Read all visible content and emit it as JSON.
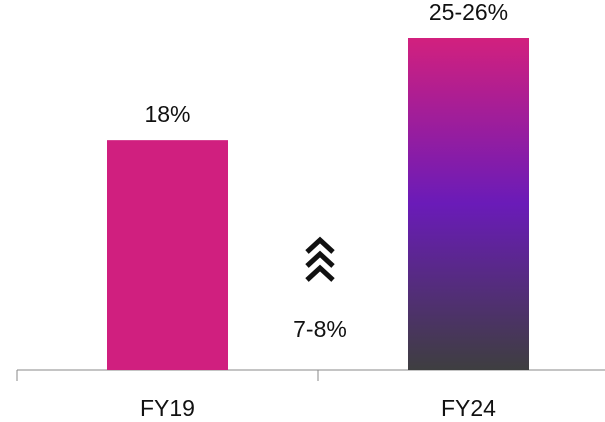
{
  "chart_data": {
    "type": "bar",
    "categories": [
      "FY19",
      "FY24"
    ],
    "values": [
      18,
      26
    ],
    "value_labels": [
      "18%",
      "25-26%"
    ],
    "fills": [
      "#d01f7f",
      [
        "#d2207e",
        "#6a1bb8",
        "#3e3e40"
      ]
    ],
    "annotation": "7-8%"
  }
}
